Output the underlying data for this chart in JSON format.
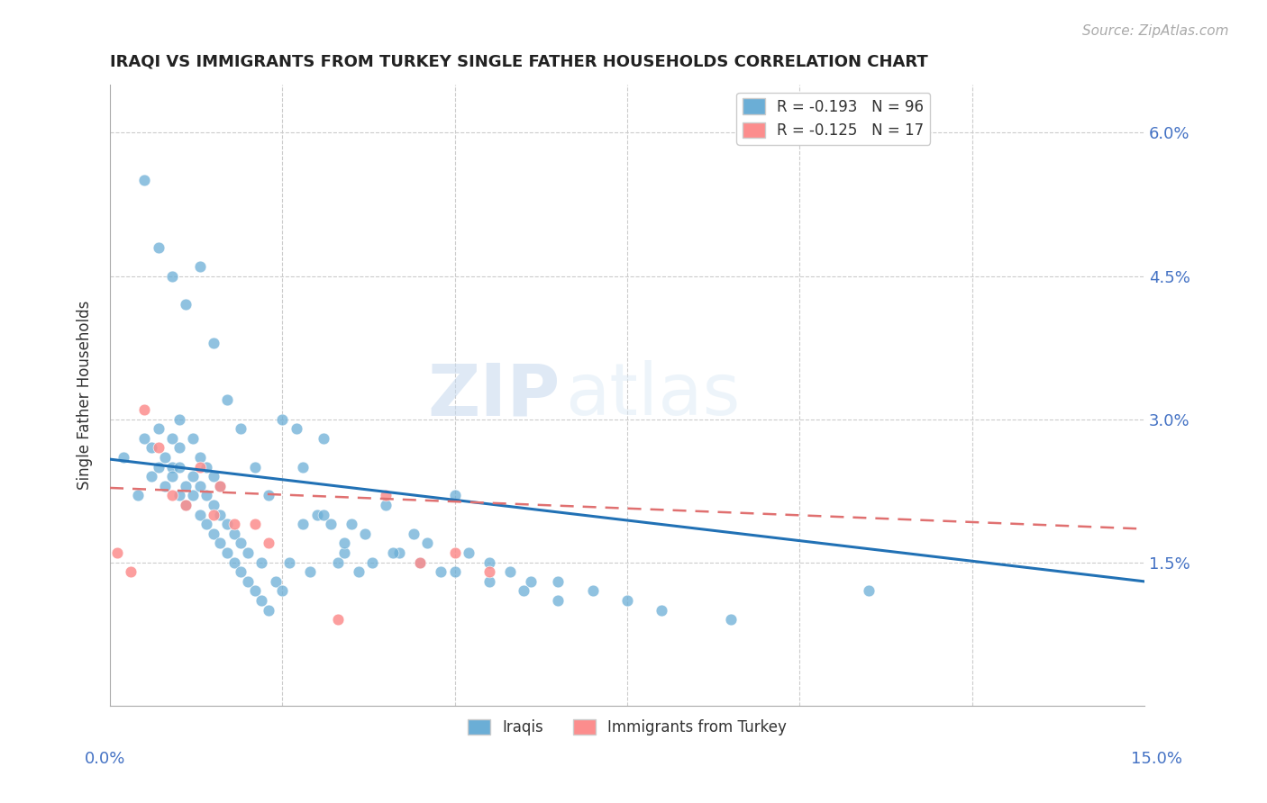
{
  "title": "IRAQI VS IMMIGRANTS FROM TURKEY SINGLE FATHER HOUSEHOLDS CORRELATION CHART",
  "source": "Source: ZipAtlas.com",
  "ylabel": "Single Father Households",
  "ytick_labels": [
    "",
    "1.5%",
    "3.0%",
    "4.5%",
    "6.0%"
  ],
  "xlim": [
    0.0,
    0.15
  ],
  "ylim": [
    0.0,
    0.065
  ],
  "color_iraqi": "#6baed6",
  "color_turkey": "#fc8d8d",
  "color_trendline_iraqi": "#2171b5",
  "color_trendline_turkey": "#e07070",
  "watermark_zip": "ZIP",
  "watermark_atlas": "atlas",
  "iraqi_x": [
    0.002,
    0.004,
    0.005,
    0.006,
    0.006,
    0.007,
    0.007,
    0.008,
    0.008,
    0.009,
    0.009,
    0.009,
    0.01,
    0.01,
    0.01,
    0.01,
    0.011,
    0.011,
    0.012,
    0.012,
    0.012,
    0.013,
    0.013,
    0.013,
    0.014,
    0.014,
    0.014,
    0.015,
    0.015,
    0.015,
    0.016,
    0.016,
    0.016,
    0.017,
    0.017,
    0.018,
    0.018,
    0.019,
    0.019,
    0.02,
    0.02,
    0.021,
    0.022,
    0.022,
    0.023,
    0.024,
    0.025,
    0.026,
    0.027,
    0.028,
    0.029,
    0.03,
    0.031,
    0.032,
    0.033,
    0.034,
    0.035,
    0.036,
    0.038,
    0.04,
    0.042,
    0.044,
    0.046,
    0.048,
    0.05,
    0.052,
    0.055,
    0.058,
    0.061,
    0.065,
    0.005,
    0.007,
    0.009,
    0.011,
    0.013,
    0.015,
    0.017,
    0.019,
    0.021,
    0.023,
    0.025,
    0.028,
    0.031,
    0.034,
    0.037,
    0.041,
    0.045,
    0.05,
    0.055,
    0.06,
    0.065,
    0.07,
    0.075,
    0.08,
    0.09,
    0.11
  ],
  "iraqi_y": [
    0.026,
    0.022,
    0.028,
    0.024,
    0.027,
    0.025,
    0.029,
    0.023,
    0.026,
    0.025,
    0.024,
    0.028,
    0.022,
    0.025,
    0.027,
    0.03,
    0.021,
    0.023,
    0.022,
    0.024,
    0.028,
    0.02,
    0.023,
    0.026,
    0.019,
    0.022,
    0.025,
    0.018,
    0.021,
    0.024,
    0.017,
    0.02,
    0.023,
    0.016,
    0.019,
    0.015,
    0.018,
    0.014,
    0.017,
    0.013,
    0.016,
    0.012,
    0.011,
    0.015,
    0.01,
    0.013,
    0.012,
    0.015,
    0.029,
    0.019,
    0.014,
    0.02,
    0.028,
    0.019,
    0.015,
    0.016,
    0.019,
    0.014,
    0.015,
    0.021,
    0.016,
    0.018,
    0.017,
    0.014,
    0.022,
    0.016,
    0.015,
    0.014,
    0.013,
    0.013,
    0.055,
    0.048,
    0.045,
    0.042,
    0.046,
    0.038,
    0.032,
    0.029,
    0.025,
    0.022,
    0.03,
    0.025,
    0.02,
    0.017,
    0.018,
    0.016,
    0.015,
    0.014,
    0.013,
    0.012,
    0.011,
    0.012,
    0.011,
    0.01,
    0.009,
    0.012
  ],
  "turkey_x": [
    0.001,
    0.003,
    0.005,
    0.007,
    0.009,
    0.011,
    0.013,
    0.015,
    0.016,
    0.018,
    0.021,
    0.023,
    0.033,
    0.04,
    0.045,
    0.05,
    0.055
  ],
  "turkey_y": [
    0.016,
    0.014,
    0.031,
    0.027,
    0.022,
    0.021,
    0.025,
    0.02,
    0.023,
    0.019,
    0.019,
    0.017,
    0.009,
    0.022,
    0.015,
    0.016,
    0.014
  ],
  "iraqi_trend": [
    0.0258,
    0.013
  ],
  "turkey_trend": [
    0.0228,
    0.0185
  ],
  "ytick_positions": [
    0.0,
    0.015,
    0.03,
    0.045,
    0.06
  ],
  "xtick_positions": [
    0.0,
    0.025,
    0.05,
    0.075,
    0.1,
    0.125,
    0.15
  ]
}
